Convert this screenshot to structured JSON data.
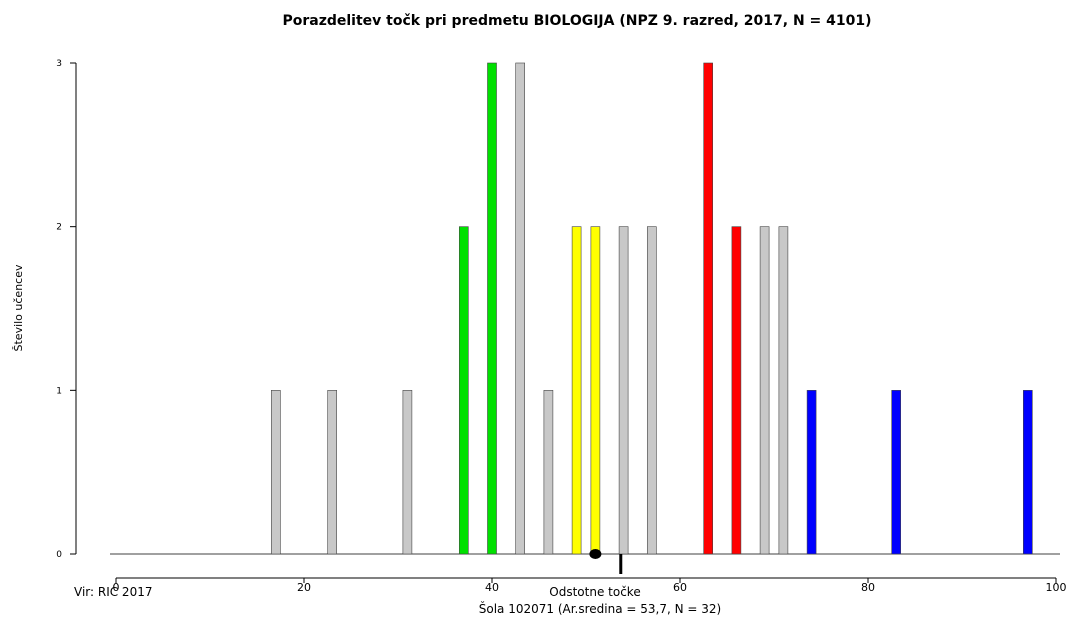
{
  "chart_data": {
    "type": "bar",
    "title": "Porazdelitev točk pri predmetu BIOLOGIJA (NPZ 9. razred, 2017, N = 4101)",
    "xlabel": "Odstotne točke",
    "ylabel": "Število učencev",
    "xlim": [
      0,
      100
    ],
    "ylim": [
      0,
      3
    ],
    "x_ticks": [
      0,
      20,
      40,
      60,
      80,
      100
    ],
    "y_ticks": [
      0,
      1,
      2,
      3
    ],
    "grid": false,
    "legend": "none",
    "series": [
      {
        "color": "#c8c8c8",
        "points": [
          {
            "x": 17,
            "y": 1
          },
          {
            "x": 23,
            "y": 1
          },
          {
            "x": 31,
            "y": 1
          },
          {
            "x": 43,
            "y": 3
          },
          {
            "x": 46,
            "y": 1
          },
          {
            "x": 54,
            "y": 2
          },
          {
            "x": 57,
            "y": 2
          },
          {
            "x": 69,
            "y": 2
          },
          {
            "x": 71,
            "y": 2
          }
        ]
      },
      {
        "color": "#00e000",
        "points": [
          {
            "x": 37,
            "y": 2
          },
          {
            "x": 40,
            "y": 3
          }
        ]
      },
      {
        "color": "#ffff00",
        "points": [
          {
            "x": 49,
            "y": 2
          },
          {
            "x": 51,
            "y": 2
          }
        ]
      },
      {
        "color": "#ff0000",
        "points": [
          {
            "x": 63,
            "y": 3
          },
          {
            "x": 66,
            "y": 2
          }
        ]
      },
      {
        "color": "#0000ff",
        "points": [
          {
            "x": 74,
            "y": 1
          },
          {
            "x": 83,
            "y": 1
          },
          {
            "x": 97,
            "y": 1
          }
        ]
      }
    ],
    "markers": {
      "national_mean_dot_x": 51,
      "school_mean_line_x": 53.7
    }
  },
  "footer": {
    "source": "Vir: RIC 2017",
    "school": "Šola 102071 (Ar.sredina = 53,7, N = 32)"
  }
}
